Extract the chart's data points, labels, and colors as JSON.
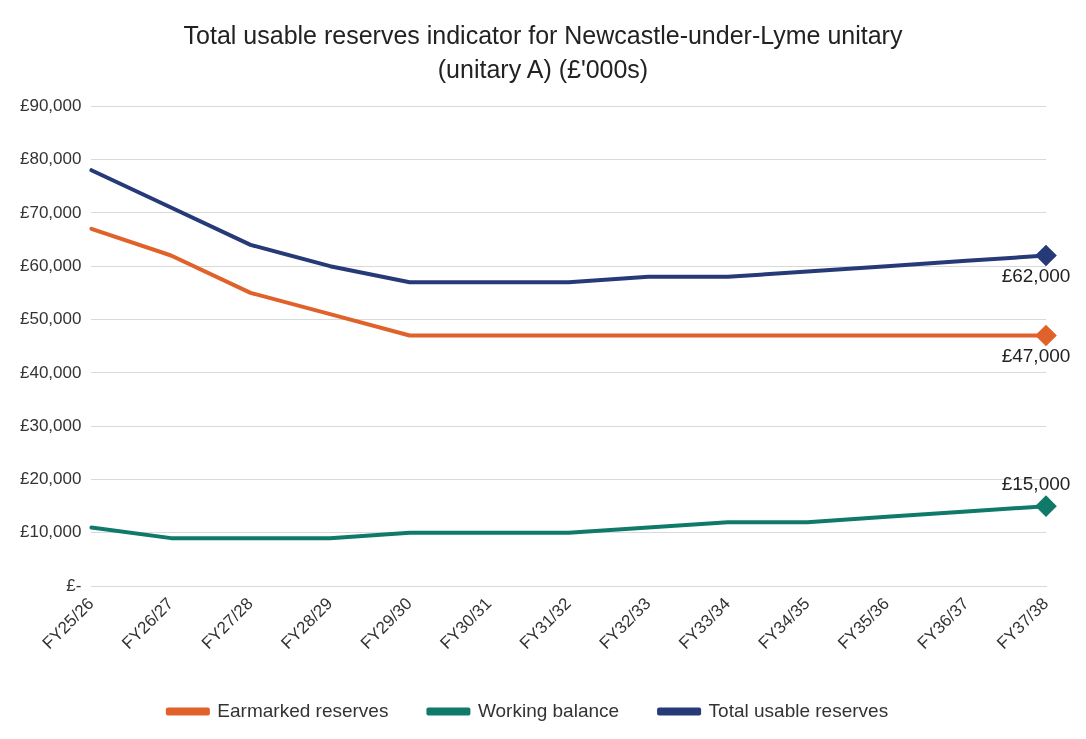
{
  "chart_data": {
    "type": "line",
    "title": "Total usable reserves indicator for Newcastle-under-Lyme unitary (unitary A) (£'000s)",
    "categories": [
      "FY25/26",
      "FY26/27",
      "FY27/28",
      "FY28/29",
      "FY29/30",
      "FY30/31",
      "FY31/32",
      "FY32/33",
      "FY33/34",
      "FY34/35",
      "FY35/36",
      "FY36/37",
      "FY37/38"
    ],
    "series": [
      {
        "name": "Earmarked reserves",
        "color": "#e0622a",
        "values": [
          67000,
          62000,
          55000,
          51000,
          47000,
          47000,
          47000,
          47000,
          47000,
          47000,
          47000,
          47000,
          47000
        ],
        "value_labels": [
          null,
          null,
          null,
          null,
          null,
          null,
          null,
          null,
          null,
          null,
          null,
          null,
          "£47,000"
        ]
      },
      {
        "name": "Working balance",
        "color": "#0f7a6a",
        "values": [
          11000,
          9000,
          9000,
          9000,
          10000,
          10000,
          10000,
          11000,
          12000,
          12000,
          13000,
          14000,
          15000
        ],
        "value_labels": [
          null,
          null,
          null,
          null,
          null,
          null,
          null,
          null,
          null,
          null,
          null,
          null,
          "£15,000"
        ]
      },
      {
        "name": "Total usable reserves",
        "color": "#263a78",
        "values": [
          78000,
          71000,
          64000,
          60000,
          57000,
          57000,
          57000,
          58000,
          58000,
          59000,
          60000,
          61000,
          62000
        ],
        "value_labels": [
          null,
          null,
          null,
          null,
          null,
          null,
          null,
          null,
          null,
          null,
          null,
          null,
          "£62,000"
        ]
      }
    ],
    "ylim": [
      0,
      90000
    ],
    "yticks": [
      {
        "value": 0,
        "label": "£-"
      },
      {
        "value": 10000,
        "label": "£10,000"
      },
      {
        "value": 20000,
        "label": "£20,000"
      },
      {
        "value": 30000,
        "label": "£30,000"
      },
      {
        "value": 40000,
        "label": "£40,000"
      },
      {
        "value": 50000,
        "label": "£50,000"
      },
      {
        "value": 60000,
        "label": "£60,000"
      },
      {
        "value": 70000,
        "label": "£70,000"
      },
      {
        "value": 80000,
        "label": "£80,000"
      },
      {
        "value": 90000,
        "label": "£90,000"
      }
    ],
    "grid": "y",
    "legend": "bottom",
    "line_style": "solid"
  }
}
